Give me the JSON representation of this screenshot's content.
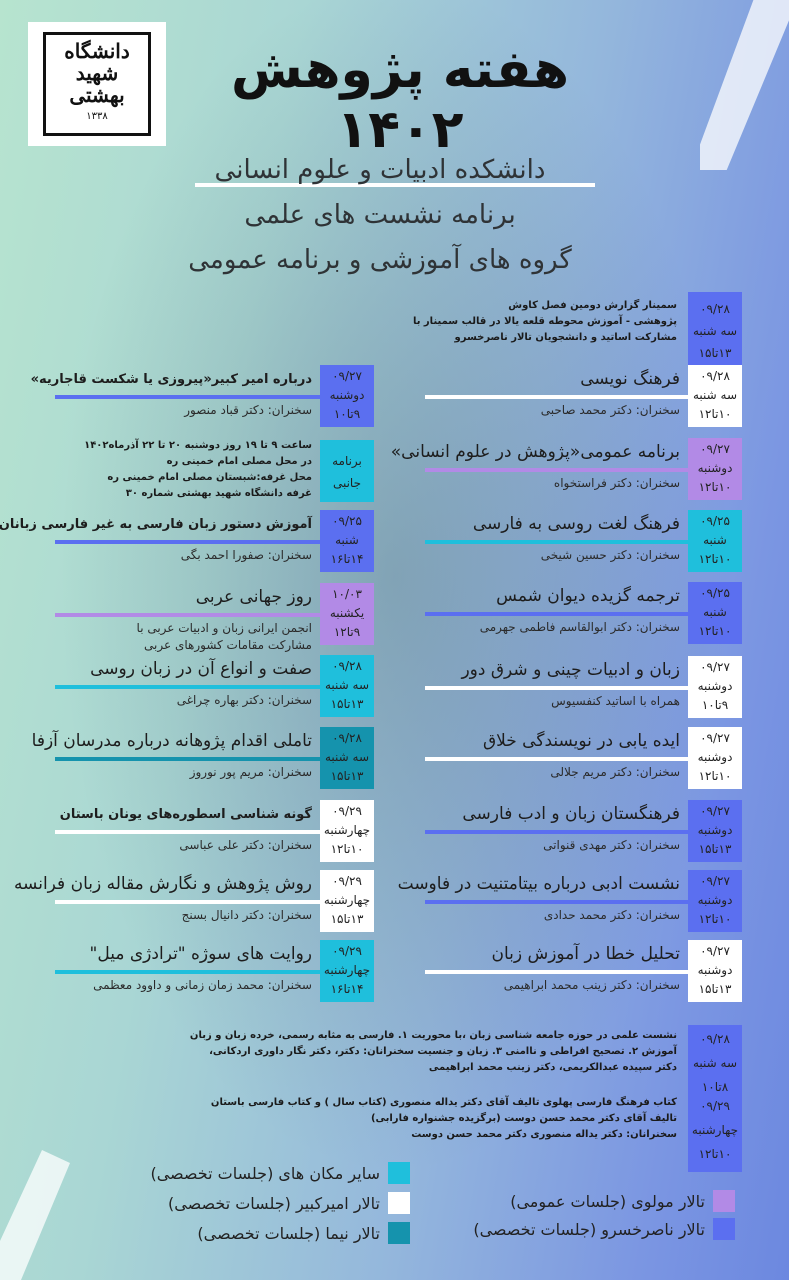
{
  "header": {
    "logo_text": "دانشگاه شهید بهشتی",
    "logo_year": "۱۳۳۸",
    "title": "هفته پژوهش ۱۴۰۲",
    "subtitles": [
      "دانشکده ادبیات و علوم انسانی",
      "برنامه نشست های علمی",
      "گروه های آموزشی و برنامه عمومی"
    ]
  },
  "colors": {
    "naserkhosro": "#5b6ff0",
    "molavi": "#b28ae6",
    "amirkabir": "#ffffff",
    "nima": "#1593ad",
    "other": "#1fbfdc"
  },
  "top_seminar": {
    "date": "۰۹/۲۸",
    "day": "سه شنبه",
    "time": "۱۳تا۱۵",
    "hall": "naserkhosro",
    "lines": [
      "سمینار گزارش دومین فصل کاوش",
      "پژوهشی - آموزش محوطه قلعه یالا در قالب سمینار با",
      "مشارکت اساتید و دانشجویان تالار ناصرخسرو"
    ]
  },
  "right_sessions": [
    {
      "date": "۰۹/۲۸",
      "day": "سه شنبه",
      "time": "۱۰تا۱۲",
      "hall": "amirkabir",
      "title": "فرهنگ نویسی",
      "speaker": "سخنران: دکتر محمد صاحبی"
    },
    {
      "date": "۰۹/۲۷",
      "day": "دوشنبه",
      "time": "۱۰تا۱۲",
      "hall": "molavi",
      "title": "برنامه عمومی«پژوهش در علوم انسانی»",
      "speaker": "سخنران:  دکتر فراستخواه"
    },
    {
      "date": "۰۹/۲۵",
      "day": "شنبه",
      "time": "۱۰تا۱۲",
      "hall": "other",
      "title": "فرهنگ لغت روسی به فارسی",
      "speaker": "سخنران: دکتر حسین شیخی"
    },
    {
      "date": "۰۹/۲۵",
      "day": "شنبه",
      "time": "۱۰تا۱۲",
      "hall": "naserkhosro",
      "title": "ترجمه گزیده دیوان شمس",
      "speaker": "سخنران: دکتر ابوالقاسم فاطمی جهرمی"
    },
    {
      "date": "۰۹/۲۷",
      "day": "دوشنبه",
      "time": "۹تا۱۰",
      "hall": "amirkabir",
      "title": "زبان و ادبیات چینی و شرق دور",
      "speaker": "همراه با اساتید کنفسیوس"
    },
    {
      "date": "۰۹/۲۷",
      "day": "دوشنبه",
      "time": "۱۰تا۱۲",
      "hall": "amirkabir",
      "title": "ایده یابی در نویسندگی خلاق",
      "speaker": "سخنران: دکتر مریم جلالی"
    },
    {
      "date": "۰۹/۲۷",
      "day": "دوشنبه",
      "time": "۱۳تا۱۵",
      "hall": "naserkhosro",
      "title": "فرهنگستان زبان و ادب فارسی",
      "speaker": "سخنران: دکتر مهدی قنواتی"
    },
    {
      "date": "۰۹/۲۷",
      "day": "دوشنبه",
      "time": "۱۰تا۱۲",
      "hall": "naserkhosro",
      "title": "نشست ادبی درباره بیتامتنیت در فاوست",
      "speaker": "سخنران: دکتر محمد حدادی"
    },
    {
      "date": "۰۹/۲۷",
      "day": "دوشنبه",
      "time": "۱۳تا۱۵",
      "hall": "amirkabir",
      "title": "تحلیل خطا در آموزش زبان",
      "speaker": "سخنران: دکتر زینب محمد ابراهیمی"
    }
  ],
  "left_sessions": [
    {
      "date": "۰۹/۲۷",
      "day": "دوشنبه",
      "time": "۹تا۱۰",
      "hall": "naserkhosro",
      "title": "درباره امیر کبیر«پیروزی یا شکست قاجاریه»",
      "bold": true,
      "speaker": "سخنران: دکتر قباد منصور"
    },
    {
      "box_lines": [
        "برنامه",
        "جانبی"
      ],
      "hall": "other",
      "lines": [
        "ساعت ۹ تا ۱۹ روز دوشنبه ۲۰ تا ۲۲ آذرماه۱۴۰۲",
        "در محل مصلی امام خمینی ره",
        "محل غرفه:شبستان مصلی امام خمینی ره",
        "غرفه دانشگاه شهید بهشتی شماره ۳۰"
      ]
    },
    {
      "date": "۰۹/۲۵",
      "day": "شنبه",
      "time": "۱۴تا۱۶",
      "hall": "naserkhosro",
      "title": "آموزش دستور زبان فارسی به غیر فارسی زبانان",
      "bold": true,
      "speaker": "سخنران: صفورا احمد بگی"
    },
    {
      "date": "۱۰/۰۳",
      "day": "یکشنبه",
      "time": "۹تا۱۲",
      "hall": "molavi",
      "title": "روز جهانی عربی",
      "speaker": "انجمن ایرانی زبان و ادبیات عربی با",
      "speaker2": "مشارکت مقامات کشورهای عربی"
    },
    {
      "date": "۰۹/۲۸",
      "day": "سه شنبه",
      "time": "۱۳تا۱۵",
      "hall": "other",
      "title": "صفت و انواع آن در زبان روسی",
      "speaker": "سخنران: دکتر بهاره چراغی"
    },
    {
      "date": "۰۹/۲۸",
      "day": "سه شنبه",
      "time": "۱۳تا۱۵",
      "hall": "nima",
      "title": "تاملی اقدام پژوهانه درباره مدرسان آزفا",
      "speaker": "سخنران: مریم پور نوروز"
    },
    {
      "date": "۰۹/۲۹",
      "day": "چهارشنبه",
      "time": "۱۰تا۱۲",
      "hall": "amirkabir",
      "title": "گونه شناسی اسطوره‌های  یونان   باستان",
      "bold": true,
      "speaker": "سخنران: دکتر علی عباسی"
    },
    {
      "date": "۰۹/۲۹",
      "day": "چهارشنبه",
      "time": "۱۳تا۱۵",
      "hall": "amirkabir",
      "title": "روش پژوهش و نگارش مقاله زبان فرانسه",
      "speaker": "سخنران: دکتر دانیال بسنج"
    },
    {
      "date": "۰۹/۲۹",
      "day": "چهارشنبه",
      "time": "۱۴تا۱۶",
      "hall": "other",
      "title": "روایت های سوژه \"ترادژی میل\"",
      "speaker": "سخنران: محمد زمان زمانی و داوود معظمی"
    }
  ],
  "bottom_sessions": [
    {
      "date": "۰۹/۲۸",
      "day": "سه شنبه",
      "time": "۸تا۱۰",
      "hall": "naserkhosro",
      "lines": [
        "نشست علمی در حوزه جامعه شناسی زبان ،با محوریت  ۱. فارسی به مثابه رسمی، خرده زبان و زبان",
        "آموزش ۲. تصحیح افراطی و ناامنی  ۳. زبان و جنسیت سخنرانان: دکتر، دکتر نگار داوری اردکانی،",
        "دکتر سپیده عبدالکریمی، دکتر زینب محمد ابراهیمی"
      ]
    },
    {
      "date": "۰۹/۲۹",
      "day": "چهارشنبه",
      "time": "۱۰تا۱۲",
      "hall": "naserkhosro",
      "lines": [
        "کتاب فرهنگ فارسی پهلوی تالیف آقای دکتر یداله منصوری (کتاب سال ) و کتاب فارسی باستان",
        "تالیف آقای دکتر محمد حسن دوست (برگزیده جشنواره فارابی)",
        "سخنرانان: دکتر یداله منصوری دکتر محمد حسن دوست"
      ]
    }
  ],
  "legend": [
    {
      "hall": "other",
      "label": "سایر مکان های (جلسات تخصصی)"
    },
    {
      "hall": "amirkabir",
      "label": "تالار امیرکبیر (جلسات تخصصی)"
    },
    {
      "hall": "nima",
      "label": "تالار نیما (جلسات تخصصی)"
    },
    {
      "hall": "molavi",
      "label": "تالار مولوی (جلسات عمومی)"
    },
    {
      "hall": "naserkhosro",
      "label": "تالار ناصرخسرو (جلسات تخصصی)"
    }
  ]
}
